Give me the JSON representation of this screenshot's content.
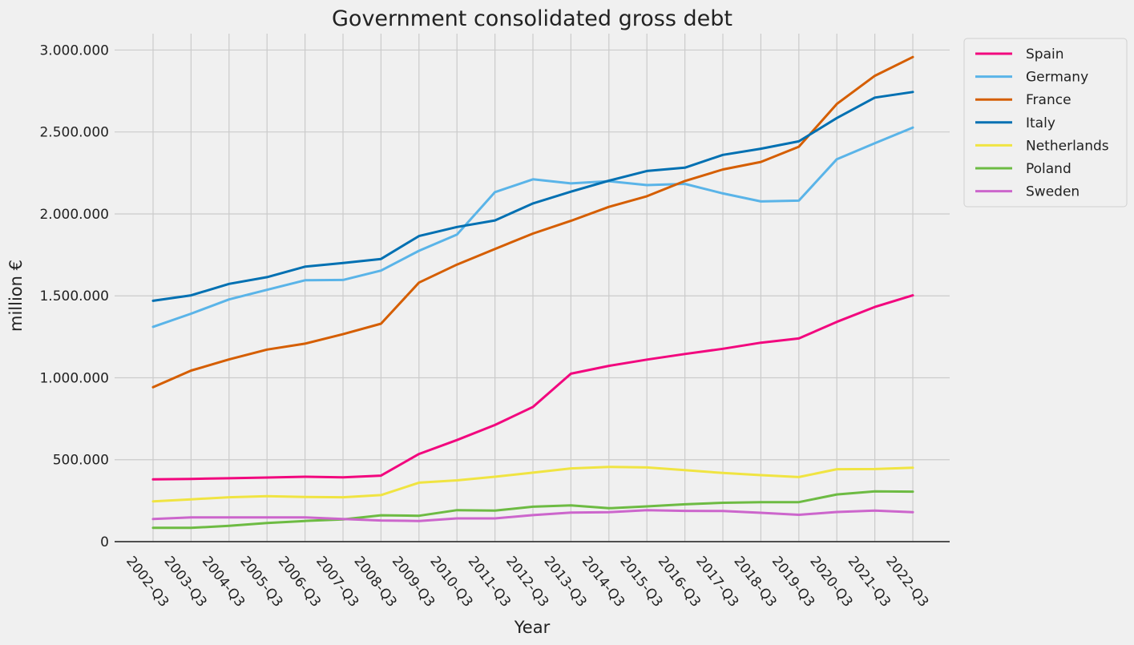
{
  "chart_data": {
    "type": "line",
    "title": "Government consolidated gross debt",
    "xlabel": "Year",
    "ylabel": "million €",
    "ylim": [
      0,
      3100000
    ],
    "yticks": [
      0,
      500000,
      1000000,
      1500000,
      2000000,
      2500000,
      3000000
    ],
    "ytick_labels": [
      "0",
      "500.000",
      "1.000.000",
      "1.500.000",
      "2.000.000",
      "2.500.000",
      "3.000.000"
    ],
    "grid": true,
    "legend_position": "outside-top-right",
    "categories": [
      "2002-Q3",
      "2003-Q3",
      "2004-Q3",
      "2005-Q3",
      "2006-Q3",
      "2007-Q3",
      "2008-Q3",
      "2009-Q3",
      "2010-Q3",
      "2011-Q3",
      "2012-Q3",
      "2013-Q3",
      "2014-Q3",
      "2015-Q3",
      "2016-Q3",
      "2017-Q3",
      "2018-Q3",
      "2019-Q3",
      "2020-Q3",
      "2021-Q3",
      "2022-Q3"
    ],
    "series": [
      {
        "name": "Spain",
        "color": "#f2067e",
        "values": [
          380000,
          383000,
          387000,
          391000,
          396000,
          392000,
          403000,
          535000,
          620000,
          712000,
          822000,
          1025000,
          1073000,
          1111000,
          1145000,
          1177000,
          1214000,
          1240000,
          1341000,
          1432000,
          1503000
        ]
      },
      {
        "name": "Germany",
        "color": "#5ab4e8",
        "values": [
          1311000,
          1391000,
          1478000,
          1537000,
          1595000,
          1597000,
          1654000,
          1775000,
          1874000,
          2133000,
          2211000,
          2186000,
          2200000,
          2176000,
          2183000,
          2125000,
          2076000,
          2081000,
          2334000,
          2431000,
          2527000
        ]
      },
      {
        "name": "France",
        "color": "#d55e00",
        "values": [
          942000,
          1044000,
          1112000,
          1172000,
          1208000,
          1266000,
          1330000,
          1581000,
          1691000,
          1786000,
          1880000,
          1958000,
          2043000,
          2108000,
          2201000,
          2271000,
          2317000,
          2410000,
          2671000,
          2843000,
          2957000
        ]
      },
      {
        "name": "Italy",
        "color": "#0070b2",
        "values": [
          1470000,
          1503000,
          1573000,
          1614000,
          1678000,
          1700000,
          1725000,
          1865000,
          1920000,
          1960000,
          2064000,
          2136000,
          2203000,
          2262000,
          2282000,
          2360000,
          2398000,
          2443000,
          2585000,
          2710000,
          2744000
        ]
      },
      {
        "name": "Netherlands",
        "color": "#f0e442",
        "values": [
          246000,
          258000,
          271000,
          277000,
          273000,
          271000,
          284000,
          360000,
          374000,
          396000,
          421000,
          447000,
          456000,
          453000,
          436000,
          419000,
          406000,
          394000,
          442000,
          443000,
          451000
        ]
      },
      {
        "name": "Poland",
        "color": "#6dbb43",
        "values": [
          84000,
          84000,
          97000,
          114000,
          126000,
          136000,
          161000,
          158000,
          192000,
          189000,
          213000,
          221000,
          204000,
          215000,
          228000,
          237000,
          241000,
          241000,
          288000,
          307000,
          305000
        ]
      },
      {
        "name": "Sweden",
        "color": "#cc66cc",
        "values": [
          138000,
          148000,
          148000,
          148000,
          148000,
          138000,
          129000,
          126000,
          142000,
          142000,
          162000,
          177000,
          180000,
          192000,
          188000,
          187000,
          176000,
          164000,
          181000,
          189000,
          180000
        ]
      }
    ]
  }
}
